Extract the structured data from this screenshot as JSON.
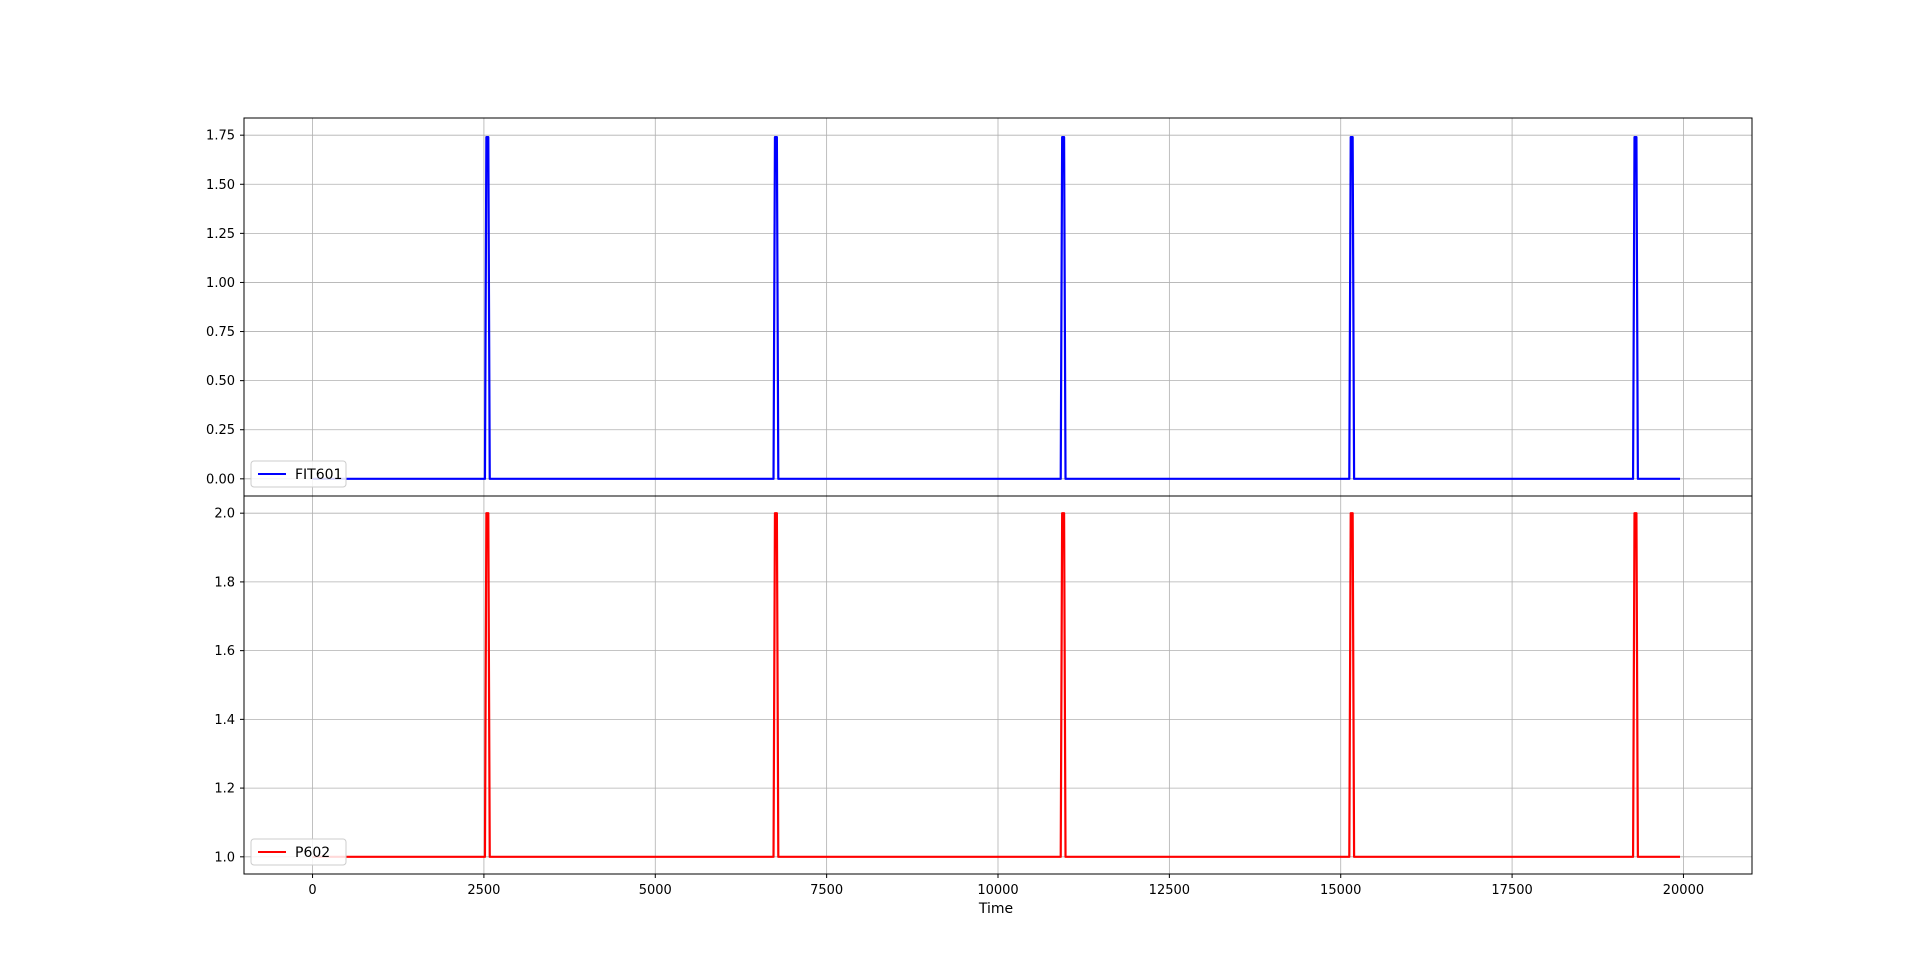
{
  "chart_data": [
    {
      "type": "line",
      "xlim": [
        -1000,
        21000
      ],
      "ylim": [
        -0.0875,
        1.8375
      ],
      "x_ticks": [
        0,
        2500,
        5000,
        7500,
        10000,
        12500,
        15000,
        17500,
        20000
      ],
      "y_ticks": [
        0.0,
        0.25,
        0.5,
        0.75,
        1.0,
        1.25,
        1.5,
        1.75
      ],
      "y_tick_labels": [
        "0.00",
        "0.25",
        "0.50",
        "0.75",
        "1.00",
        "1.25",
        "1.50",
        "1.75"
      ],
      "grid": true,
      "legend_position": "lower-left",
      "series": [
        {
          "name": "FIT601",
          "color": "#0000ff",
          "x_start": 0,
          "x_end": 19950,
          "baseline": 0.0,
          "spike_height": 1.74,
          "spike_centers": [
            2550,
            6760,
            10950,
            15160,
            19300
          ]
        }
      ]
    },
    {
      "type": "line",
      "xlim": [
        -1000,
        21000
      ],
      "ylim": [
        0.95,
        2.05
      ],
      "x_ticks": [
        0,
        2500,
        5000,
        7500,
        10000,
        12500,
        15000,
        17500,
        20000
      ],
      "x_tick_labels": [
        "0",
        "2500",
        "5000",
        "7500",
        "10000",
        "12500",
        "15000",
        "17500",
        "20000"
      ],
      "y_ticks": [
        1.0,
        1.2,
        1.4,
        1.6,
        1.8,
        2.0
      ],
      "y_tick_labels": [
        "1.0",
        "1.2",
        "1.4",
        "1.6",
        "1.8",
        "2.0"
      ],
      "xlabel": "Time",
      "grid": true,
      "legend_position": "lower-left",
      "series": [
        {
          "name": "P602",
          "color": "#ff0000",
          "x_start": 0,
          "x_end": 19950,
          "baseline": 1.0,
          "spike_height": 2.0,
          "spike_centers": [
            2550,
            6760,
            10950,
            15160,
            19300
          ]
        }
      ]
    }
  ]
}
